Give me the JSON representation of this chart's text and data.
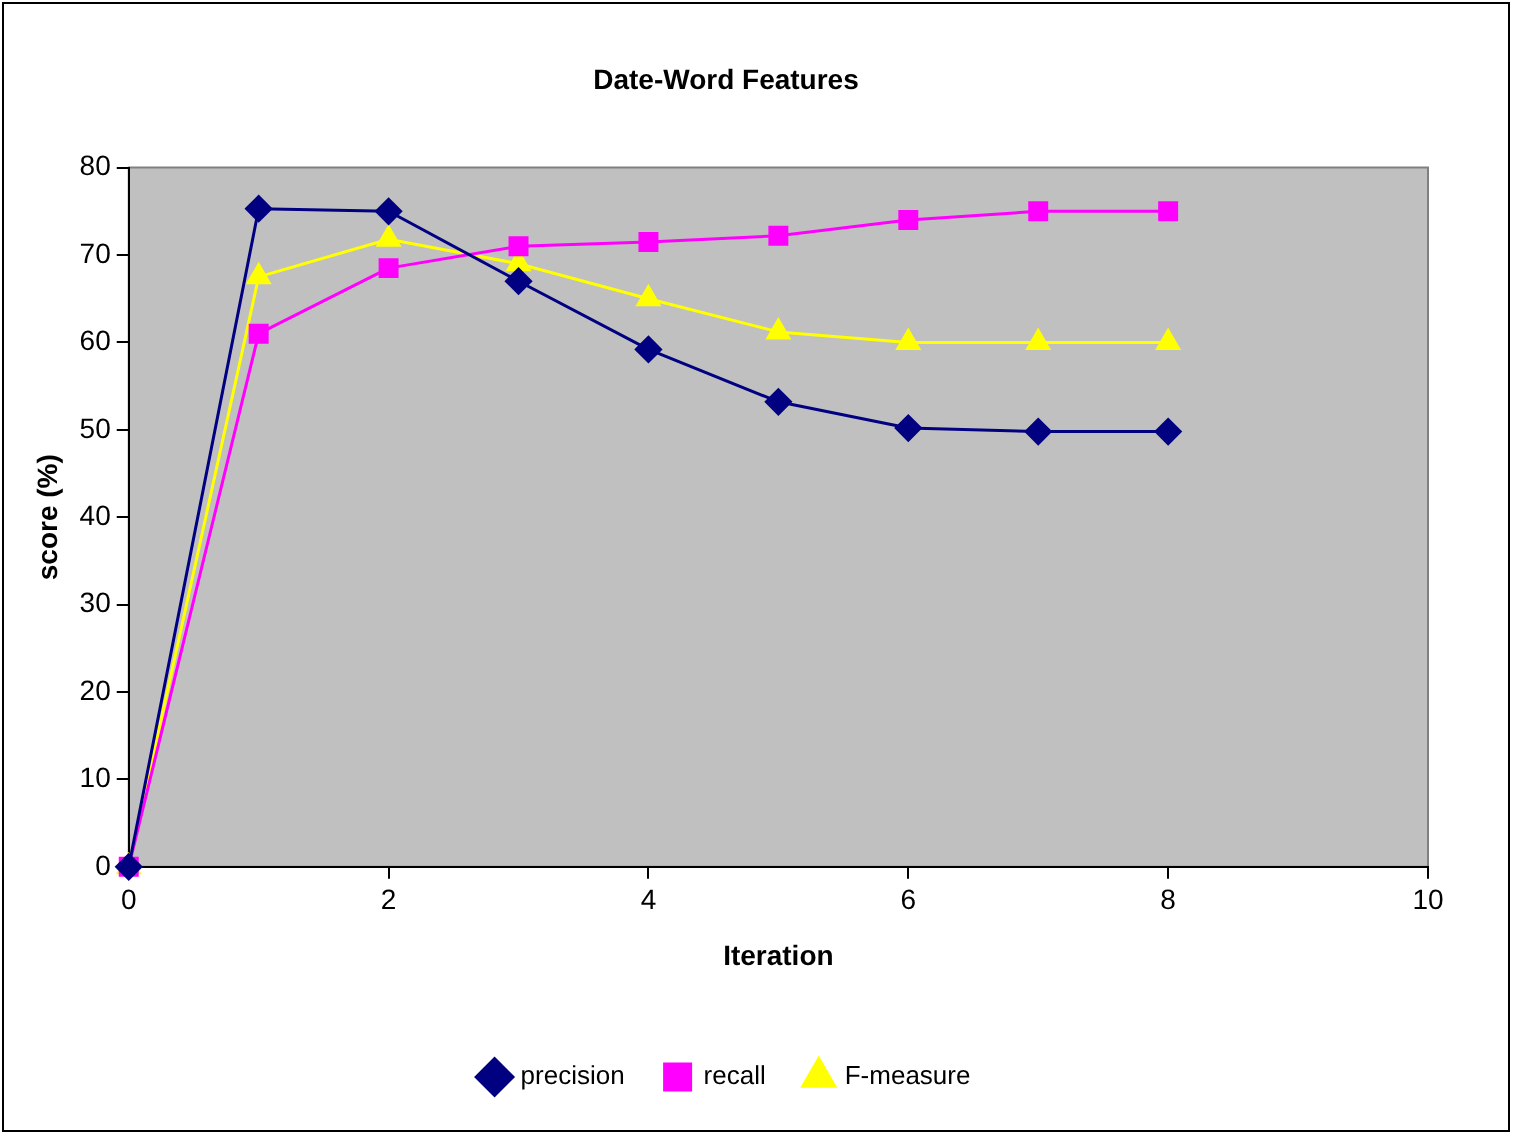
{
  "chart_data": {
    "type": "line",
    "title": "Date-Word Features",
    "xlabel": "Iteration",
    "ylabel": "score (%)",
    "x": [
      0,
      1,
      2,
      3,
      4,
      5,
      6,
      7,
      8
    ],
    "series": [
      {
        "name": "precision",
        "color": "#000080",
        "marker": "diamond",
        "values": [
          0,
          75.3,
          75,
          67,
          59.2,
          53.2,
          50.2,
          49.8,
          49.8
        ]
      },
      {
        "name": "recall",
        "color": "#ff00ff",
        "marker": "square",
        "values": [
          0,
          61,
          68.5,
          71,
          71.5,
          72.2,
          74,
          75,
          75
        ]
      },
      {
        "name": "F-measure",
        "color": "#ffff00",
        "marker": "triangle",
        "values": [
          0,
          67.5,
          71.8,
          69,
          65,
          61.2,
          60,
          60,
          60
        ]
      }
    ],
    "xlim": [
      0,
      10
    ],
    "xticks": [
      0,
      2,
      4,
      6,
      8,
      10
    ],
    "ylim": [
      0,
      80
    ],
    "yticks": [
      0,
      10,
      20,
      30,
      40,
      50,
      60,
      70,
      80
    ],
    "grid": false,
    "legend": "bottom"
  }
}
